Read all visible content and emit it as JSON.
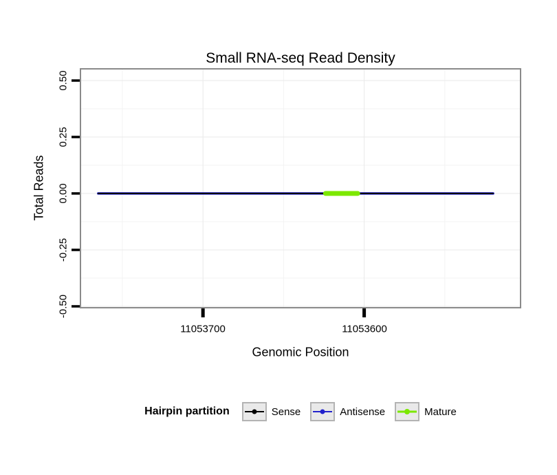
{
  "chart_data": {
    "type": "line",
    "title": "Small RNA-seq Read Density",
    "xlabel": "Genomic Position",
    "ylabel": "Total Reads",
    "x_axis": {
      "reversed": true,
      "domain": [
        11053776,
        11053503
      ],
      "ticks": [
        {
          "value": 11053700,
          "label": "11053700"
        },
        {
          "value": 11053600,
          "label": "11053600"
        }
      ],
      "minor_ticks": [
        11053750,
        11053650,
        11053550
      ]
    },
    "y_axis": {
      "domain": [
        -0.5,
        0.5
      ],
      "ticks": [
        {
          "value": 0.5,
          "label": "0.50"
        },
        {
          "value": 0.25,
          "label": "0.25"
        },
        {
          "value": 0,
          "label": "0.00"
        },
        {
          "value": -0.25,
          "label": "-0.25"
        },
        {
          "value": -0.5,
          "label": "-0.50"
        }
      ],
      "minor_ticks": [
        0.375,
        0.125,
        -0.125,
        -0.375
      ]
    },
    "series": [
      {
        "name": "Antisense",
        "color": "#2222cc",
        "y": 0,
        "x_start": 11053765,
        "x_end": 11053520,
        "line_width": 3.5
      },
      {
        "name": "Sense",
        "color": "#000000",
        "y": 0,
        "x_start": 11053765,
        "x_end": 11053520,
        "line_width": 2
      },
      {
        "name": "Mature",
        "color": "#7ce800",
        "y": 0,
        "x_start": 11053624,
        "x_end": 11053604,
        "line_width": 7
      }
    ],
    "legend": {
      "title": "Hairpin partition",
      "entries": [
        {
          "label": "Sense",
          "color": "#000000",
          "key_line_width": 2
        },
        {
          "label": "Antisense",
          "color": "#2222cc",
          "key_line_width": 2
        },
        {
          "label": "Mature",
          "color": "#7ce800",
          "key_line_width": 3
        }
      ]
    }
  }
}
